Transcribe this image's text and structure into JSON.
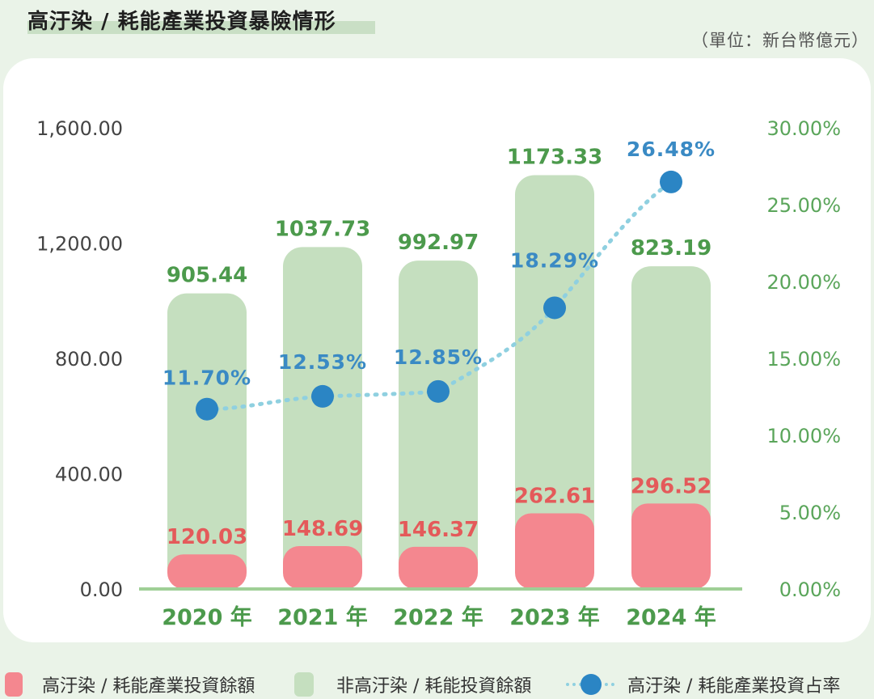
{
  "title": "高汙染 / 耗能產業投資暴險情形",
  "unit": "（單位：新台幣億元）",
  "colors": {
    "polluting": "#f4878f",
    "non_polluting": "#c5dfbf",
    "rate_point": "#2b85c4",
    "rate_line": "#8fd0e0",
    "axis_green": "#5aa55a",
    "label_green": "#4c9a4c",
    "label_red": "#e45a5a",
    "label_blue": "#3a8ac4"
  },
  "chart_data": {
    "type": "bar",
    "categories": [
      "2020 年",
      "2021 年",
      "2022 年",
      "2023 年",
      "2024 年"
    ],
    "series": [
      {
        "name": "高汙染 / 耗能產業投資餘額",
        "type": "bar",
        "axis": "left",
        "values": [
          120.03,
          148.69,
          146.37,
          262.61,
          296.52
        ],
        "labels": [
          "120.03",
          "148.69",
          "146.37",
          "262.61",
          "296.52"
        ]
      },
      {
        "name": "非高汙染 / 耗能投資餘額",
        "type": "bar",
        "axis": "left",
        "values": [
          905.44,
          1037.73,
          992.97,
          1173.33,
          823.19
        ],
        "labels": [
          "905.44",
          "1037.73",
          "992.97",
          "1173.33",
          "823.19"
        ]
      },
      {
        "name": "高汙染 / 耗能產業投資占率",
        "type": "line",
        "axis": "right",
        "values": [
          11.7,
          12.53,
          12.85,
          18.29,
          26.48
        ],
        "labels": [
          "11.70%",
          "12.53%",
          "12.85%",
          "18.29%",
          "26.48%"
        ]
      }
    ],
    "y_left": {
      "min": 0,
      "max": 1600,
      "ticks": [
        "0.00",
        "400.00",
        "800.00",
        "1,200.00",
        "1,600.00"
      ],
      "tick_values": [
        0,
        400,
        800,
        1200,
        1600
      ]
    },
    "y_right": {
      "min": 0,
      "max": 30,
      "ticks": [
        "0.00%",
        "5.00%",
        "10.00%",
        "15.00%",
        "20.00%",
        "25.00%",
        "30.00%"
      ],
      "tick_values": [
        0,
        5,
        10,
        15,
        20,
        25,
        30
      ]
    },
    "grid": false,
    "legend_position": "bottom"
  }
}
